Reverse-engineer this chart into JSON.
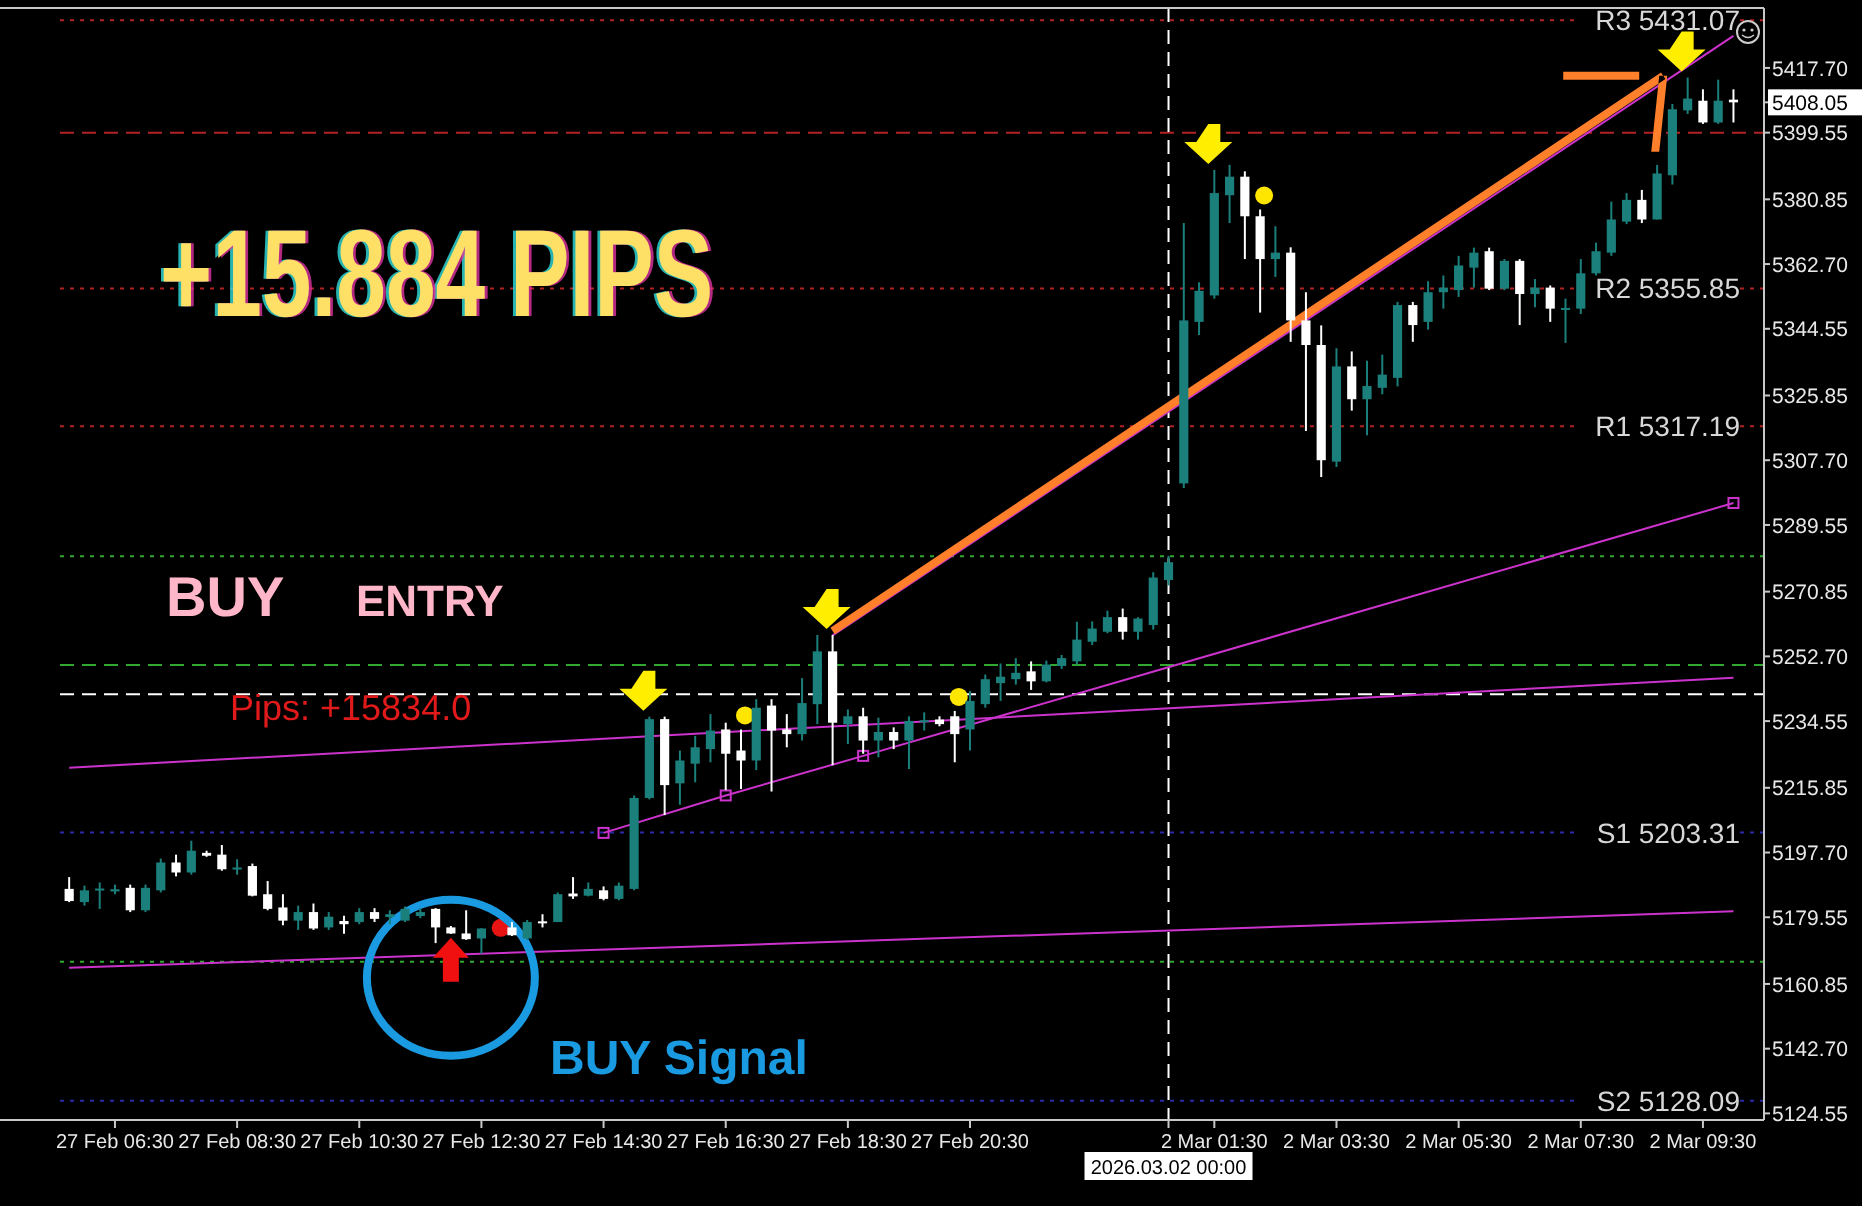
{
  "chart_data": {
    "type": "candlestick",
    "categories": [
      null,
      null,
      null,
      "27 Feb 06:30",
      null,
      null,
      null,
      null,
      null,
      null,
      null,
      "27 Feb 08:30",
      null,
      null,
      null,
      null,
      null,
      null,
      null,
      "27 Feb 10:30",
      null,
      null,
      null,
      null,
      null,
      null,
      null,
      "27 Feb 12:30",
      null,
      null,
      null,
      null,
      null,
      null,
      null,
      "27 Feb 14:30",
      null,
      null,
      null,
      null,
      null,
      null,
      null,
      "27 Feb 16:30",
      null,
      null,
      null,
      null,
      null,
      null,
      null,
      "27 Feb 18:30",
      null,
      null,
      null,
      null,
      null,
      null,
      null,
      "27 Feb 20:30",
      null,
      null,
      null,
      null,
      null,
      null,
      null,
      null,
      null,
      null,
      null,
      null,
      "2026.03.02 00:00",
      null,
      null,
      "2 Mar 01:30",
      null,
      null,
      null,
      null,
      null,
      null,
      null,
      "2 Mar 03:30",
      null,
      null,
      null,
      null,
      null,
      null,
      null,
      "2 Mar 05:30",
      null,
      null,
      null,
      null,
      null,
      null,
      null,
      "2 Mar 07:30",
      null,
      null,
      null,
      null,
      null,
      null,
      null,
      "2 Mar 09:30",
      null,
      null
    ],
    "ohlc": [
      [
        5187.5,
        5190.8,
        5183.8,
        5184.1
      ],
      [
        5183.8,
        5188.4,
        5182.8,
        5187.1
      ],
      [
        5187.1,
        5189.3,
        5181.9,
        5187.6
      ],
      [
        5186.8,
        5188.7,
        5186.0,
        5187.4
      ],
      [
        5187.8,
        5188.7,
        5181.0,
        5181.5
      ],
      [
        5181.5,
        5188.7,
        5181.0,
        5187.8
      ],
      [
        5187.1,
        5196.0,
        5186.5,
        5194.9
      ],
      [
        5194.9,
        5197.1,
        5191.0,
        5192.1
      ],
      [
        5192.1,
        5201.0,
        5191.5,
        5198.2
      ],
      [
        5197.6,
        5198.2,
        5196.5,
        5196.8
      ],
      [
        5197.1,
        5199.8,
        5192.6,
        5193.0
      ],
      [
        5193.2,
        5195.8,
        5191.5,
        5193.5
      ],
      [
        5193.9,
        5194.6,
        5185.4,
        5185.6
      ],
      [
        5186.0,
        5189.7,
        5181.5,
        5181.9
      ],
      [
        5182.3,
        5186.0,
        5177.3,
        5178.6
      ],
      [
        5178.6,
        5182.8,
        5176.0,
        5181.0
      ],
      [
        5181.0,
        5183.4,
        5176.0,
        5176.4
      ],
      [
        5176.7,
        5181.0,
        5176.0,
        5179.7
      ],
      [
        5178.5,
        5180.0,
        5174.9,
        5177.6
      ],
      [
        5178.2,
        5182.1,
        5177.6,
        5181.0
      ],
      [
        5181.0,
        5182.1,
        5178.2,
        5179.1
      ],
      [
        5179.6,
        5181.5,
        5177.6,
        5180.4
      ],
      [
        5178.6,
        5182.6,
        5178.2,
        5181.9
      ],
      [
        5179.9,
        5182.1,
        5179.3,
        5181.0
      ],
      [
        5181.9,
        5182.1,
        5172.3,
        5176.7
      ],
      [
        5176.7,
        5177.1,
        5174.9,
        5175.0
      ],
      [
        5175.0,
        5181.5,
        5173.2,
        5173.4
      ],
      [
        5173.6,
        5176.5,
        5169.3,
        5176.4
      ],
      null,
      [
        5176.7,
        5178.2,
        5174.3,
        5174.5
      ],
      [
        5173.6,
        5178.8,
        5173.2,
        5178.2
      ],
      [
        5178.4,
        5180.4,
        5176.7,
        5178.0
      ],
      [
        5178.2,
        5186.5,
        5178.2,
        5186.0
      ],
      [
        5186.2,
        5190.8,
        5184.7,
        5185.4
      ],
      [
        5185.6,
        5189.3,
        5185.4,
        5187.5
      ],
      [
        5187.1,
        5188.2,
        5184.3,
        5184.7
      ],
      [
        5184.7,
        5189.3,
        5184.3,
        5188.4
      ],
      [
        5187.5,
        5213.7,
        5187.1,
        5213.0
      ],
      [
        5213.0,
        5235.8,
        5212.6,
        5235.1
      ],
      [
        5235.1,
        5235.8,
        5208.2,
        5216.6
      ],
      [
        5217.1,
        5226.3,
        5211.1,
        5223.5
      ],
      [
        5222.6,
        5230.4,
        5217.4,
        5227.2
      ],
      [
        5226.7,
        5236.5,
        5223.0,
        5231.9
      ],
      [
        5232.2,
        5234.1,
        5215.2,
        5225.4
      ],
      [
        5226.3,
        5232.2,
        5215.5,
        5223.5
      ],
      [
        5223.5,
        5240.7,
        5220.8,
        5238.3
      ],
      [
        5238.9,
        5240.7,
        5214.8,
        5231.9
      ],
      [
        5232.2,
        5236.5,
        5227.2,
        5230.9
      ],
      [
        5230.9,
        5246.6,
        5229.1,
        5239.6
      ],
      [
        5239.3,
        5258.7,
        5233.7,
        5254.1
      ],
      [
        5254.1,
        5258.7,
        5222.2,
        5234.1
      ],
      [
        5233.7,
        5237.8,
        5228.1,
        5235.9
      ],
      [
        5235.9,
        5238.3,
        5225.4,
        5229.1
      ],
      [
        5229.1,
        5235.5,
        5224.4,
        5231.5
      ],
      [
        5231.5,
        5232.8,
        5226.7,
        5229.1
      ],
      [
        5229.1,
        5235.9,
        5221.1,
        5234.6
      ],
      [
        5234.3,
        5237.0,
        5231.9,
        5234.8
      ],
      [
        5235.0,
        5235.9,
        5233.1,
        5233.7
      ],
      [
        5235.9,
        5237.4,
        5223.0,
        5230.9
      ],
      [
        5232.2,
        5243.0,
        5226.3,
        5240.2
      ],
      [
        5239.3,
        5247.6,
        5238.3,
        5246.3
      ],
      [
        5245.2,
        5250.7,
        5240.2,
        5247.0
      ],
      [
        5246.3,
        5252.2,
        5244.8,
        5248.1
      ],
      [
        5248.5,
        5251.3,
        5243.3,
        5245.7
      ],
      [
        5245.7,
        5251.5,
        5245.4,
        5250.4
      ],
      [
        5250.0,
        5253.1,
        5249.2,
        5252.2
      ],
      [
        5251.3,
        5262.4,
        5250.4,
        5257.4
      ],
      [
        5256.8,
        5262.5,
        5255.9,
        5260.5
      ],
      [
        5259.6,
        5265.5,
        5259.2,
        5263.7
      ],
      [
        5263.7,
        5266.1,
        5257.4,
        5259.6
      ],
      [
        5259.6,
        5263.7,
        5257.4,
        5263.3
      ],
      [
        5261.5,
        5276.3,
        5260.2,
        5274.8
      ],
      [
        5274.1,
        5280.9,
        5272.6,
        5279.1
      ],
      [
        5301.2,
        5374.2,
        5299.9,
        5346.9
      ],
      [
        5346.5,
        5357.6,
        5342.8,
        5355.2
      ],
      [
        5353.9,
        5389.1,
        5353.0,
        5382.6
      ],
      [
        5382.0,
        5390.5,
        5374.2,
        5387.2
      ],
      [
        5387.2,
        5388.7,
        5364.1,
        5376.1
      ],
      [
        5376.1,
        5378.0,
        5349.1,
        5364.1
      ],
      [
        5364.1,
        5373.3,
        5359.1,
        5365.9
      ],
      [
        5365.9,
        5367.4,
        5340.9,
        5346.9
      ],
      [
        5346.9,
        5354.8,
        5315.9,
        5340.0
      ],
      [
        5340.0,
        5345.5,
        5303.0,
        5307.7
      ],
      [
        5307.3,
        5339.1,
        5305.8,
        5334.0
      ],
      [
        5334.0,
        5338.2,
        5321.6,
        5324.8
      ],
      [
        5324.8,
        5335.6,
        5314.7,
        5328.5
      ],
      [
        5328.0,
        5337.3,
        5326.2,
        5331.7
      ],
      [
        5330.8,
        5352.1,
        5328.4,
        5351.2
      ],
      [
        5351.2,
        5352.1,
        5340.9,
        5345.6
      ],
      [
        5346.5,
        5357.9,
        5344.3,
        5354.8
      ],
      [
        5354.8,
        5359.5,
        5350.2,
        5356.1
      ],
      [
        5355.4,
        5365.0,
        5353.5,
        5362.3
      ],
      [
        5361.7,
        5367.3,
        5356.1,
        5365.9
      ],
      [
        5366.3,
        5367.3,
        5355.4,
        5355.8
      ],
      [
        5355.8,
        5364.1,
        5355.4,
        5363.6
      ],
      [
        5363.6,
        5364.1,
        5345.6,
        5354.3
      ],
      [
        5354.3,
        5358.5,
        5350.6,
        5356.1
      ],
      [
        5356.1,
        5356.7,
        5346.5,
        5350.2
      ],
      [
        5350.0,
        5353.0,
        5340.6,
        5350.4
      ],
      [
        5350.2,
        5364.1,
        5348.7,
        5360.1
      ],
      [
        5360.1,
        5368.7,
        5359.5,
        5366.3
      ],
      [
        5365.9,
        5380.2,
        5365.0,
        5375.2
      ],
      [
        5374.6,
        5382.6,
        5373.9,
        5380.7
      ],
      [
        5380.7,
        5383.5,
        5374.2,
        5375.2
      ],
      [
        5375.2,
        5390.5,
        5375.2,
        5388.1
      ],
      [
        5387.6,
        5407.6,
        5385.0,
        5406.1
      ],
      [
        5405.8,
        5415.0,
        5404.8,
        5409.1
      ],
      [
        5408.5,
        5411.7,
        5402.0,
        5402.4
      ],
      [
        5402.4,
        5414.4,
        5402.0,
        5408.5
      ],
      [
        5408.8,
        5411.7,
        5402.4,
        5408.05
      ]
    ],
    "colors": [
      "#ffffff",
      "#1b807c",
      "#1b807c",
      "#1b807c",
      "#ffffff",
      "#1b807c",
      "#1b807c",
      "#ffffff",
      "#1b807c",
      "#ffffff",
      "#ffffff",
      "#1b807c",
      "#ffffff",
      "#ffffff",
      "#ffffff",
      "#1b807c",
      "#ffffff",
      "#1b807c",
      "#ffffff",
      "#1b807c",
      "#ffffff",
      "#1b807c",
      "#1b807c",
      "#1b807c",
      "#ffffff",
      "#ffffff",
      "#ffffff",
      "#1b807c",
      null,
      "#ffffff",
      "#1b807c",
      "#ffffff",
      "#1b807c",
      "#ffffff",
      "#1b807c",
      "#ffffff",
      "#1b807c",
      "#1b807c",
      "#1b807c",
      "#ffffff",
      "#1b807c",
      "#1b807c",
      "#1b807c",
      "#ffffff",
      "#ffffff",
      "#1b807c",
      "#ffffff",
      "#ffffff",
      "#1b807c",
      "#1b807c",
      "#ffffff",
      "#1b807c",
      "#ffffff",
      "#1b807c",
      "#ffffff",
      "#1b807c",
      "#1b807c",
      "#ffffff",
      "#ffffff",
      "#1b807c",
      "#1b807c",
      "#1b807c",
      "#1b807c",
      "#ffffff",
      "#1b807c",
      "#1b807c",
      "#1b807c",
      "#1b807c",
      "#1b807c",
      "#ffffff",
      "#1b807c",
      "#1b807c",
      "#1b807c",
      "#1b807c",
      "#1b807c",
      "#1b807c",
      "#1b807c",
      "#ffffff",
      "#ffffff",
      "#1b807c",
      "#ffffff",
      "#ffffff",
      "#ffffff",
      "#1b807c",
      "#ffffff",
      "#1b807c",
      "#1b807c",
      "#1b807c",
      "#ffffff",
      "#1b807c",
      "#1b807c",
      "#1b807c",
      "#1b807c",
      "#ffffff",
      "#1b807c",
      "#ffffff",
      "#1b807c",
      "#ffffff",
      "#1b807c",
      "#1b807c",
      "#1b807c",
      "#1b807c",
      "#1b807c",
      "#ffffff",
      "#1b807c",
      "#1b807c",
      "#1b807c",
      "#ffffff",
      "#1b807c",
      "#ffffff"
    ],
    "series": [
      {
        "type": "line",
        "color": "#cc33cc",
        "values": [
          5221.5,
          null,
          null,
          null,
          null,
          null,
          null,
          null,
          null,
          null,
          null,
          null,
          null,
          null,
          null,
          null,
          null,
          null,
          null,
          null,
          null,
          null,
          null,
          null,
          null,
          null,
          null,
          null,
          null,
          null,
          null,
          null,
          null,
          null,
          null,
          null,
          null,
          null,
          null,
          null,
          null,
          null,
          null,
          null,
          null,
          null,
          null,
          null,
          null,
          null,
          null,
          null,
          null,
          null,
          null,
          null,
          null,
          null,
          null,
          null,
          null,
          null,
          null,
          null,
          null,
          null,
          null,
          null,
          null,
          null,
          null,
          null,
          null,
          null,
          null,
          null,
          null,
          null,
          null,
          null,
          null,
          null,
          null,
          null,
          null,
          null,
          null,
          null,
          null,
          null,
          null,
          null,
          null,
          null,
          null,
          null,
          null,
          null,
          null,
          null,
          null,
          null,
          null,
          null,
          null,
          null,
          null,
          null,
          null,
          5246.7
        ]
      },
      {
        "type": "line",
        "color": "#cc33cc",
        "values": [
          5165.4,
          null,
          null,
          null,
          null,
          null,
          null,
          null,
          null,
          null,
          null,
          null,
          null,
          null,
          null,
          null,
          null,
          null,
          null,
          null,
          null,
          null,
          null,
          null,
          null,
          null,
          null,
          null,
          null,
          null,
          null,
          null,
          null,
          null,
          null,
          null,
          null,
          null,
          null,
          null,
          null,
          null,
          null,
          null,
          null,
          null,
          null,
          null,
          null,
          null,
          null,
          null,
          null,
          null,
          null,
          null,
          null,
          null,
          null,
          null,
          null,
          null,
          null,
          null,
          null,
          null,
          null,
          null,
          null,
          null,
          null,
          null,
          null,
          null,
          null,
          null,
          null,
          null,
          null,
          null,
          null,
          null,
          null,
          null,
          null,
          null,
          null,
          null,
          null,
          null,
          null,
          null,
          null,
          null,
          null,
          null,
          null,
          null,
          null,
          null,
          null,
          null,
          null,
          null,
          null,
          null,
          null,
          null,
          null,
          5181.2
        ]
      },
      {
        "type": "line",
        "color": "#cc33cc",
        "marker": "square",
        "values": [
          null,
          null,
          null,
          null,
          null,
          null,
          null,
          null,
          null,
          null,
          null,
          null,
          null,
          null,
          null,
          null,
          null,
          null,
          null,
          null,
          null,
          null,
          null,
          null,
          null,
          null,
          null,
          null,
          null,
          null,
          null,
          null,
          null,
          null,
          null,
          5203.2,
          null,
          null,
          null,
          null,
          null,
          null,
          null,
          5213.7,
          null,
          null,
          null,
          null,
          null,
          null,
          null,
          null,
          5224.8,
          null,
          null,
          null,
          null,
          null,
          null,
          null,
          null,
          null,
          null,
          null,
          null,
          null,
          null,
          null,
          null,
          null,
          null,
          null,
          null,
          null,
          null,
          null,
          null,
          null,
          null,
          null,
          null,
          null,
          null,
          null,
          null,
          null,
          null,
          null,
          null,
          null,
          null,
          null,
          null,
          null,
          null,
          null,
          null,
          null,
          null,
          null,
          null,
          null,
          null,
          null,
          null,
          null,
          null,
          null,
          null,
          5295.7
        ]
      },
      {
        "type": "line",
        "color": "#cc33cc",
        "values": [
          null,
          null,
          null,
          null,
          null,
          null,
          null,
          null,
          null,
          null,
          null,
          null,
          null,
          null,
          null,
          null,
          null,
          null,
          null,
          null,
          null,
          null,
          null,
          null,
          null,
          null,
          null,
          null,
          null,
          null,
          null,
          null,
          null,
          null,
          null,
          null,
          null,
          null,
          null,
          null,
          null,
          null,
          null,
          null,
          null,
          null,
          null,
          null,
          null,
          null,
          5258.6,
          null,
          null,
          null,
          null,
          null,
          null,
          null,
          null,
          null,
          null,
          null,
          null,
          null,
          null,
          null,
          null,
          null,
          null,
          null,
          null,
          null,
          null,
          null,
          null,
          null,
          null,
          null,
          null,
          null,
          null,
          null,
          null,
          null,
          null,
          null,
          null,
          null,
          null,
          null,
          null,
          null,
          null,
          null,
          null,
          null,
          null,
          null,
          null,
          null,
          null,
          null,
          null,
          null,
          null,
          null,
          null,
          null,
          null,
          5426.7
        ]
      }
    ],
    "ylim": [
      5122.7,
      5434.5
    ],
    "yticks": [
      {
        "value": 5124.55,
        "label": "5124.55"
      },
      {
        "value": 5142.7,
        "label": "5142.70"
      },
      {
        "value": 5160.85,
        "label": "5160.85"
      },
      {
        "value": 5179.55,
        "label": "5179.55"
      },
      {
        "value": 5197.7,
        "label": "5197.70"
      },
      {
        "value": 5215.85,
        "label": "5215.85"
      },
      {
        "value": 5234.55,
        "label": "5234.55"
      },
      {
        "value": 5252.7,
        "label": "5252.70"
      },
      {
        "value": 5270.85,
        "label": "5270.85"
      },
      {
        "value": 5289.55,
        "label": "5289.55"
      },
      {
        "value": 5307.7,
        "label": "5307.70"
      },
      {
        "value": 5325.85,
        "label": "5325.85"
      },
      {
        "value": 5344.55,
        "label": "5344.55"
      },
      {
        "value": 5362.7,
        "label": "5362.70"
      },
      {
        "value": 5380.85,
        "label": "5380.85"
      },
      {
        "value": 5399.55,
        "label": "5399.55"
      },
      {
        "value": 5408.05,
        "label": "5408.05"
      },
      {
        "value": 5417.7,
        "label": "5417.70"
      }
    ],
    "ref_lines": [
      {
        "axis": "y",
        "value": 5431.07,
        "label": "R3 5431.07",
        "color": "#b22222",
        "line_style": "dotted"
      },
      {
        "axis": "y",
        "value": 5399.55,
        "color": "#b22222",
        "line_style": "dashed"
      },
      {
        "axis": "y",
        "value": 5355.85,
        "label": "R2 5355.85",
        "color": "#b22222",
        "line_style": "dotted"
      },
      {
        "axis": "y",
        "value": 5317.19,
        "label": "R1 5317.19",
        "color": "#b22222",
        "line_style": "dotted"
      },
      {
        "axis": "y",
        "value": 5280.8,
        "color": "#32a832",
        "line_style": "dotted"
      },
      {
        "axis": "y",
        "value": 5250.3,
        "color": "#32a832",
        "line_style": "dashed"
      },
      {
        "axis": "y",
        "value": 5242.1,
        "color": "#ffffff",
        "line_style": "dashed"
      },
      {
        "axis": "y",
        "value": 5203.31,
        "label": "S1 5203.31",
        "color": "#2a2aa8",
        "line_style": "dotted"
      },
      {
        "axis": "y",
        "value": 5167.1,
        "color": "#32a832",
        "line_style": "dotted"
      },
      {
        "axis": "y",
        "value": 5128.09,
        "label": "S2 5128.09",
        "color": "#2a2aa8",
        "line_style": "dotted"
      },
      {
        "axis": "x",
        "value": "2026.03.02 00:00",
        "color": "#ffffff",
        "line_style": "dashed"
      }
    ],
    "annotations": [
      "+15.884 PIPS",
      "BUY",
      "ENTRY",
      "Pips: +15834.0",
      "BUY Signal"
    ]
  }
}
